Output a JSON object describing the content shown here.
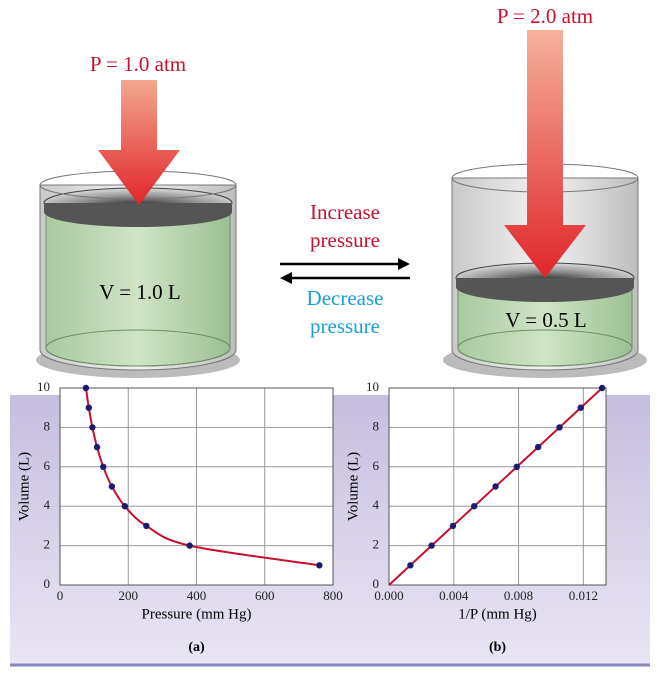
{
  "diagram": {
    "left_pressure": "P = 1.0 atm",
    "right_pressure": "P = 2.0 atm",
    "left_volume": "V = 1.0 L",
    "right_volume": "V = 0.5 L",
    "increase": [
      "Increase",
      "pressure"
    ],
    "decrease": [
      "Decrease",
      "pressure"
    ]
  },
  "chart_data": [
    {
      "type": "scatter",
      "x": [
        76,
        84.4,
        95,
        108.6,
        126.7,
        152,
        190,
        253,
        380,
        760
      ],
      "y": [
        10,
        9,
        8,
        7,
        6,
        5,
        4,
        3,
        2,
        1
      ],
      "color": "#1c1c6e",
      "line_color": "#c8102e",
      "curve": true,
      "xlim": [
        0,
        800
      ],
      "ylim": [
        0,
        10
      ],
      "xticks": [
        0,
        200,
        400,
        600,
        800
      ],
      "yticks": [
        0,
        2,
        4,
        6,
        8,
        10
      ],
      "xlabel": "Pressure (mm Hg)",
      "ylabel": "Volume (L)",
      "caption": "(a)",
      "grid": true
    },
    {
      "type": "scatter",
      "x": [
        0.00132,
        0.00263,
        0.00395,
        0.00526,
        0.00658,
        0.00789,
        0.00921,
        0.01053,
        0.01184,
        0.01316
      ],
      "y": [
        1,
        2,
        3,
        4,
        5,
        6,
        7,
        8,
        9,
        10
      ],
      "color": "#1c1c6e",
      "line_color": "#c8102e",
      "fit": {
        "x": [
          0,
          0.01316
        ],
        "y": [
          0,
          10
        ]
      },
      "xlim": [
        0,
        0.0134
      ],
      "ylim": [
        0,
        10
      ],
      "xticks": [
        {
          "value": 0,
          "label": "0.000"
        },
        {
          "value": 0.004,
          "label": "0.004"
        },
        {
          "value": 0.008,
          "label": "0.008"
        },
        {
          "value": 0.012,
          "label": "0.012"
        }
      ],
      "yticks": [
        0,
        2,
        4,
        6,
        8,
        10
      ],
      "xlabel": "1/P (mm Hg)",
      "ylabel": "Volume (L)",
      "caption": "(b)",
      "grid": true
    }
  ]
}
